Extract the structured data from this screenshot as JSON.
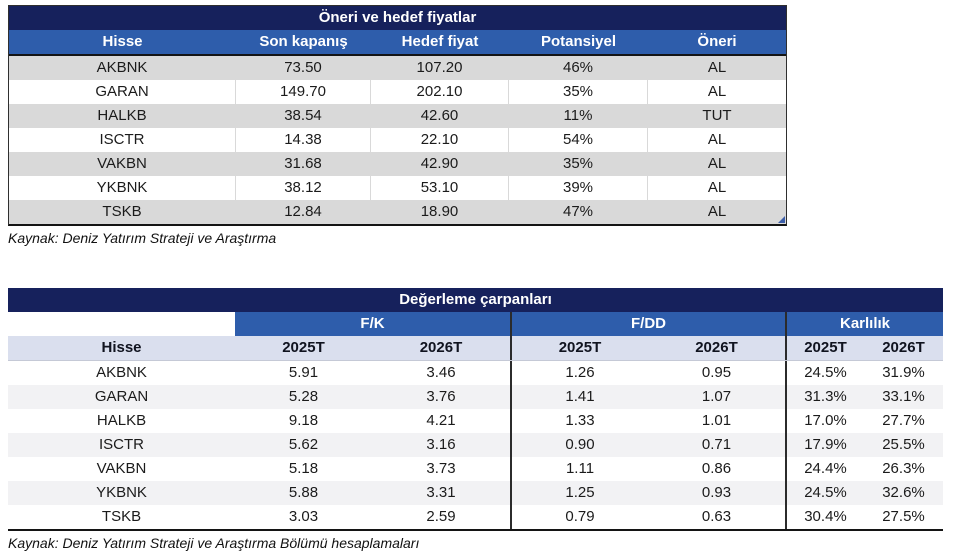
{
  "table1": {
    "title": "Öneri ve hedef fiyatlar",
    "headers": [
      "Hisse",
      "Son kapanış",
      "Hedef fiyat",
      "Potansiyel",
      "Öneri"
    ],
    "rows": [
      [
        "AKBNK",
        "73.50",
        "107.20",
        "46%",
        "AL"
      ],
      [
        "GARAN",
        "149.70",
        "202.10",
        "35%",
        "AL"
      ],
      [
        "HALKB",
        "38.54",
        "42.60",
        "11%",
        "TUT"
      ],
      [
        "ISCTR",
        "14.38",
        "22.10",
        "54%",
        "AL"
      ],
      [
        "VAKBN",
        "31.68",
        "42.90",
        "35%",
        "AL"
      ],
      [
        "YKBNK",
        "38.12",
        "53.10",
        "39%",
        "AL"
      ],
      [
        "TSKB",
        "12.84",
        "18.90",
        "47%",
        "AL"
      ]
    ],
    "source": "Kaynak: Deniz Yatırım Strateji ve Araştırma"
  },
  "table2": {
    "title": "Değerleme çarpanları",
    "groups": [
      "F/K",
      "F/DD",
      "Karlılık"
    ],
    "headers": [
      "Hisse",
      "2025T",
      "2026T",
      "2025T",
      "2026T",
      "2025T",
      "2026T"
    ],
    "rows": [
      [
        "AKBNK",
        "5.91",
        "3.46",
        "1.26",
        "0.95",
        "24.5%",
        "31.9%"
      ],
      [
        "GARAN",
        "5.28",
        "3.76",
        "1.41",
        "1.07",
        "31.3%",
        "33.1%"
      ],
      [
        "HALKB",
        "9.18",
        "4.21",
        "1.33",
        "1.01",
        "17.0%",
        "27.7%"
      ],
      [
        "ISCTR",
        "5.62",
        "3.16",
        "0.90",
        "0.71",
        "17.9%",
        "25.5%"
      ],
      [
        "VAKBN",
        "5.18",
        "3.73",
        "1.11",
        "0.86",
        "24.4%",
        "26.3%"
      ],
      [
        "YKBNK",
        "5.88",
        "3.31",
        "1.25",
        "0.93",
        "24.5%",
        "32.6%"
      ],
      [
        "TSKB",
        "3.03",
        "2.59",
        "0.79",
        "0.63",
        "30.4%",
        "27.5%"
      ]
    ],
    "source": "Kaynak: Deniz Yatırım Strateji ve Araştırma Bölümü hesaplamaları"
  },
  "colors": {
    "title_bar": "#16215c",
    "header_bar": "#2e5dab",
    "table1_stripe": "#d9d9d9",
    "table2_stripe": "#f2f2f4",
    "table2_header_row": "#dadfee",
    "corner_marker": "#3b5ea9"
  }
}
